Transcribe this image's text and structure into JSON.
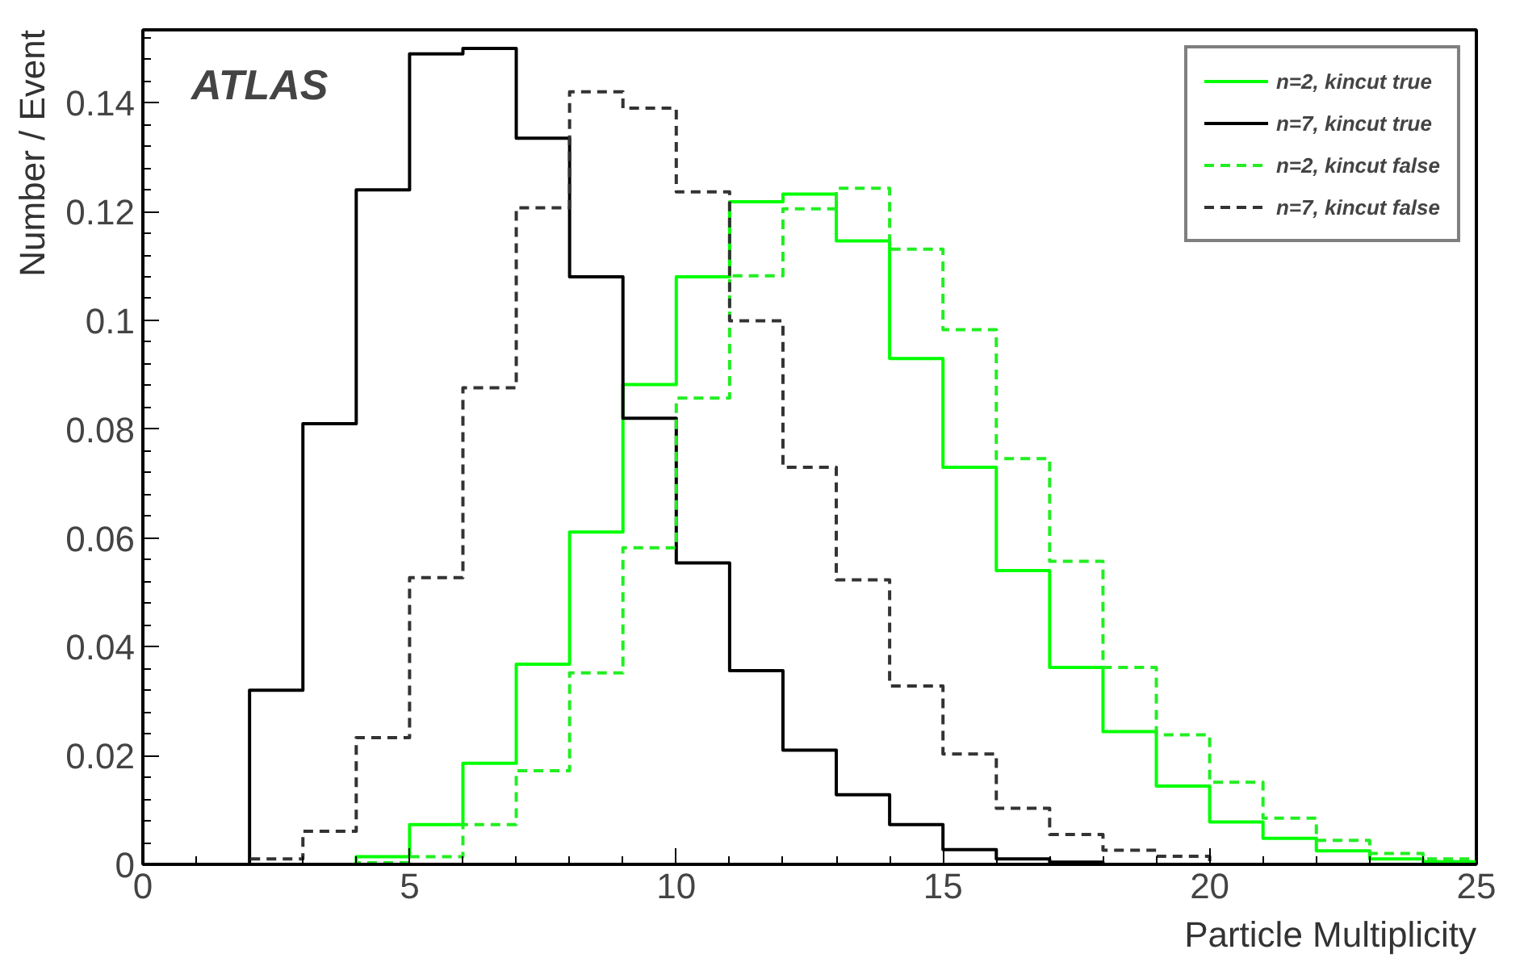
{
  "chart_data": {
    "type": "histogram",
    "xlabel": "Particle Multiplicity",
    "ylabel": "Number / Event",
    "annotations": [
      "ATLAS"
    ],
    "bins": [
      0,
      1,
      2,
      3,
      4,
      5,
      6,
      7,
      8,
      9,
      10,
      11,
      12,
      13,
      14,
      15,
      16,
      17,
      18,
      19,
      20,
      21,
      22,
      23,
      24,
      25
    ],
    "series": [
      {
        "name": "n=2, kincut true",
        "color": "#00ff00",
        "line_style": "solid",
        "values": [
          0,
          0,
          0,
          0,
          0.0014,
          0.0073,
          0.0186,
          0.0368,
          0.0611,
          0.0882,
          0.108,
          0.1218,
          0.1232,
          0.1146,
          0.093,
          0.073,
          0.054,
          0.0362,
          0.0244,
          0.0144,
          0.0078,
          0.0048,
          0.0025,
          0.001,
          0.0005
        ]
      },
      {
        "name": "n=7, kincut true",
        "color": "#000000",
        "line_style": "solid",
        "values": [
          0,
          0,
          0.032,
          0.081,
          0.124,
          0.149,
          0.15,
          0.1335,
          0.108,
          0.082,
          0.0554,
          0.0356,
          0.021,
          0.0128,
          0.0073,
          0.0027,
          0.001,
          0.0004,
          0,
          0,
          0,
          0,
          0,
          0,
          0
        ]
      },
      {
        "name": "n=2, kincut false",
        "color": "#22ee22",
        "line_style": "dashed",
        "values": [
          0,
          0,
          0,
          0,
          0.0003,
          0.0014,
          0.0073,
          0.0172,
          0.0352,
          0.0582,
          0.0857,
          0.1082,
          0.1205,
          0.1243,
          0.1131,
          0.0983,
          0.0746,
          0.0557,
          0.0362,
          0.0238,
          0.0151,
          0.0085,
          0.0044,
          0.002,
          0.001
        ]
      },
      {
        "name": "n=7, kincut false",
        "color": "#333333",
        "line_style": "dashed",
        "values": [
          0,
          0,
          0.001,
          0.0061,
          0.0233,
          0.0527,
          0.0876,
          0.1207,
          0.142,
          0.139,
          0.1236,
          0.0999,
          0.073,
          0.0523,
          0.0328,
          0.0203,
          0.0103,
          0.0055,
          0.0026,
          0.0015,
          0,
          0,
          0,
          0,
          0
        ]
      }
    ],
    "xlim": [
      0,
      25
    ],
    "ylim": [
      0,
      0.1534
    ],
    "xticks": [
      0,
      5,
      10,
      15,
      20,
      25
    ],
    "yticks": [
      0,
      0.02,
      0.04,
      0.06,
      0.08,
      0.1,
      0.12,
      0.14
    ],
    "grid": false,
    "legend": "top right"
  }
}
